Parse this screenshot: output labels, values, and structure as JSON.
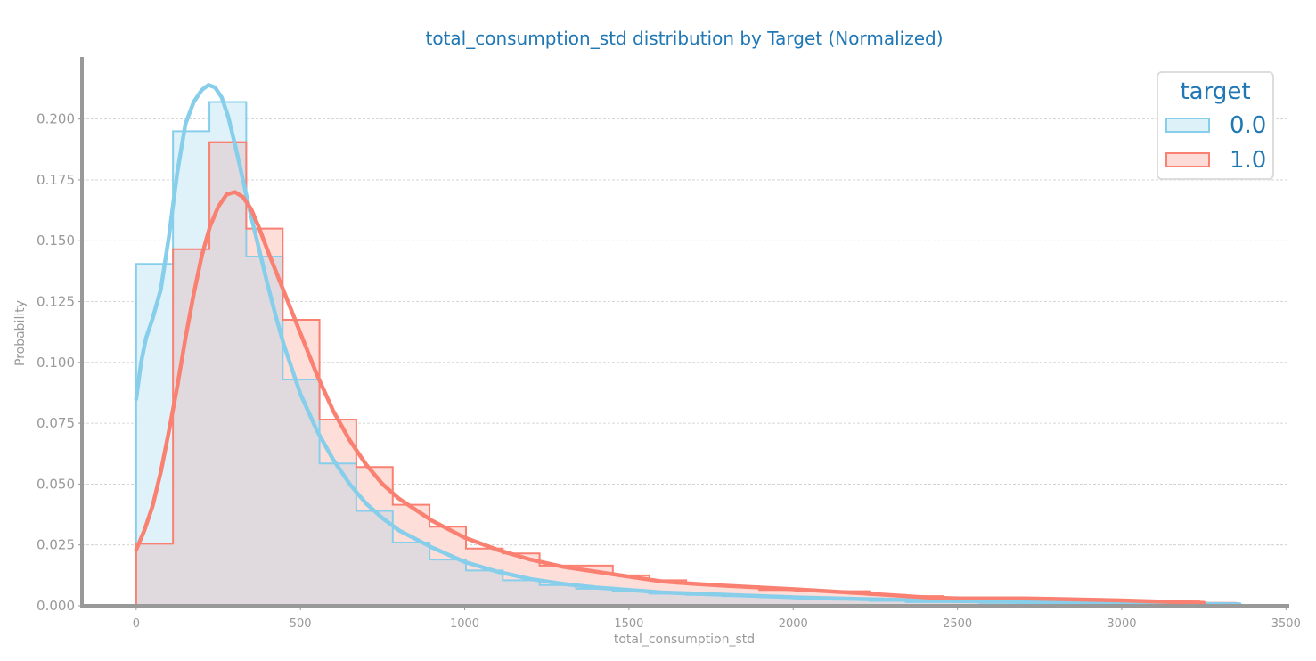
{
  "chart_data": {
    "type": "histogram",
    "title": "total_consumption_std distribution by Target (Normalized)",
    "xlabel": "total_consumption_std",
    "ylabel": "Probability",
    "xlim": [
      -165,
      3510
    ],
    "ylim": [
      0,
      0.2255
    ],
    "xticks": [
      0,
      500,
      1000,
      1500,
      2000,
      2500,
      3000,
      3500
    ],
    "yticks": [
      0.0,
      0.025,
      0.05,
      0.075,
      0.1,
      0.125,
      0.15,
      0.175,
      0.2
    ],
    "ytick_labels": [
      "0.000",
      "0.025",
      "0.050",
      "0.075",
      "0.100",
      "0.125",
      "0.150",
      "0.175",
      "0.200"
    ],
    "grid": "y-dashed",
    "legend_title": "target",
    "legend_position": "top-right",
    "bin_edges": [
      0,
      112,
      223,
      335,
      446,
      558,
      670,
      781,
      893,
      1004,
      1116,
      1228,
      1339,
      1451,
      1562,
      1674,
      1785,
      1897,
      2008,
      2120,
      2232,
      2343,
      2455,
      2566,
      2678,
      2789,
      2901,
      3012,
      3124,
      3236,
      3347,
      3359
    ],
    "series": [
      {
        "name": "0.0",
        "color": "#87ceeb",
        "fill": "#ddf1f9",
        "hist": [
          0.1405,
          0.195,
          0.207,
          0.1435,
          0.093,
          0.0585,
          0.039,
          0.026,
          0.019,
          0.0145,
          0.0105,
          0.0085,
          0.007,
          0.006,
          0.005,
          0.0045,
          0.004,
          0.0035,
          0.003,
          0.0025,
          0.002,
          0.0015,
          0.0015,
          0.0012,
          0.001,
          0.001,
          0.0008,
          0.0007,
          0.0006,
          0.0005,
          0.0004
        ],
        "kde_x": [
          0,
          15,
          30,
          50,
          75,
          100,
          125,
          150,
          175,
          200,
          220,
          240,
          260,
          280,
          300,
          325,
          350,
          375,
          400,
          425,
          450,
          500,
          550,
          600,
          650,
          700,
          750,
          800,
          900,
          1000,
          1100,
          1200,
          1300,
          1400,
          1500,
          1600,
          1800,
          2000,
          2200,
          2400,
          2600,
          2800,
          3000,
          3200,
          3359
        ],
        "kde_y": [
          0.085,
          0.1,
          0.11,
          0.118,
          0.13,
          0.152,
          0.178,
          0.198,
          0.207,
          0.212,
          0.214,
          0.213,
          0.209,
          0.201,
          0.19,
          0.175,
          0.16,
          0.146,
          0.132,
          0.119,
          0.107,
          0.087,
          0.072,
          0.06,
          0.05,
          0.042,
          0.036,
          0.031,
          0.024,
          0.018,
          0.014,
          0.011,
          0.009,
          0.0075,
          0.0065,
          0.0055,
          0.0045,
          0.0035,
          0.0028,
          0.0022,
          0.0018,
          0.0014,
          0.0011,
          0.0008,
          0.0006
        ]
      },
      {
        "name": "1.0",
        "color": "#fa8072",
        "fill": "#fddcd7",
        "hist": [
          0.0255,
          0.1465,
          0.1905,
          0.155,
          0.1175,
          0.0765,
          0.057,
          0.0415,
          0.0325,
          0.0235,
          0.0215,
          0.0165,
          0.0165,
          0.0125,
          0.0105,
          0.009,
          0.008,
          0.0065,
          0.006,
          0.006,
          0.0045,
          0.004,
          0.0035,
          0.003,
          0.003,
          0.0025,
          0.0022,
          0.002,
          0.0018,
          0.0012,
          0.0
        ],
        "kde_x": [
          0,
          25,
          50,
          75,
          100,
          125,
          150,
          175,
          200,
          225,
          250,
          275,
          300,
          325,
          350,
          375,
          400,
          450,
          500,
          550,
          600,
          650,
          700,
          750,
          800,
          900,
          1000,
          1100,
          1200,
          1300,
          1400,
          1500,
          1600,
          1700,
          1800,
          2000,
          2200,
          2400,
          2500,
          2600,
          2700,
          2800,
          3000,
          3250
        ],
        "kde_y": [
          0.023,
          0.031,
          0.041,
          0.055,
          0.072,
          0.09,
          0.11,
          0.128,
          0.144,
          0.156,
          0.164,
          0.169,
          0.17,
          0.168,
          0.163,
          0.155,
          0.146,
          0.129,
          0.112,
          0.095,
          0.08,
          0.068,
          0.058,
          0.05,
          0.044,
          0.035,
          0.028,
          0.023,
          0.019,
          0.016,
          0.014,
          0.012,
          0.01,
          0.009,
          0.0082,
          0.0068,
          0.0052,
          0.0035,
          0.003,
          0.003,
          0.003,
          0.0028,
          0.0022,
          0.0012
        ]
      }
    ]
  },
  "colors": {
    "title": "#1f77b4",
    "axis": "#999999",
    "tick_label": "#999999",
    "grid": "#cccccc",
    "overlap": "#e0dadf"
  }
}
